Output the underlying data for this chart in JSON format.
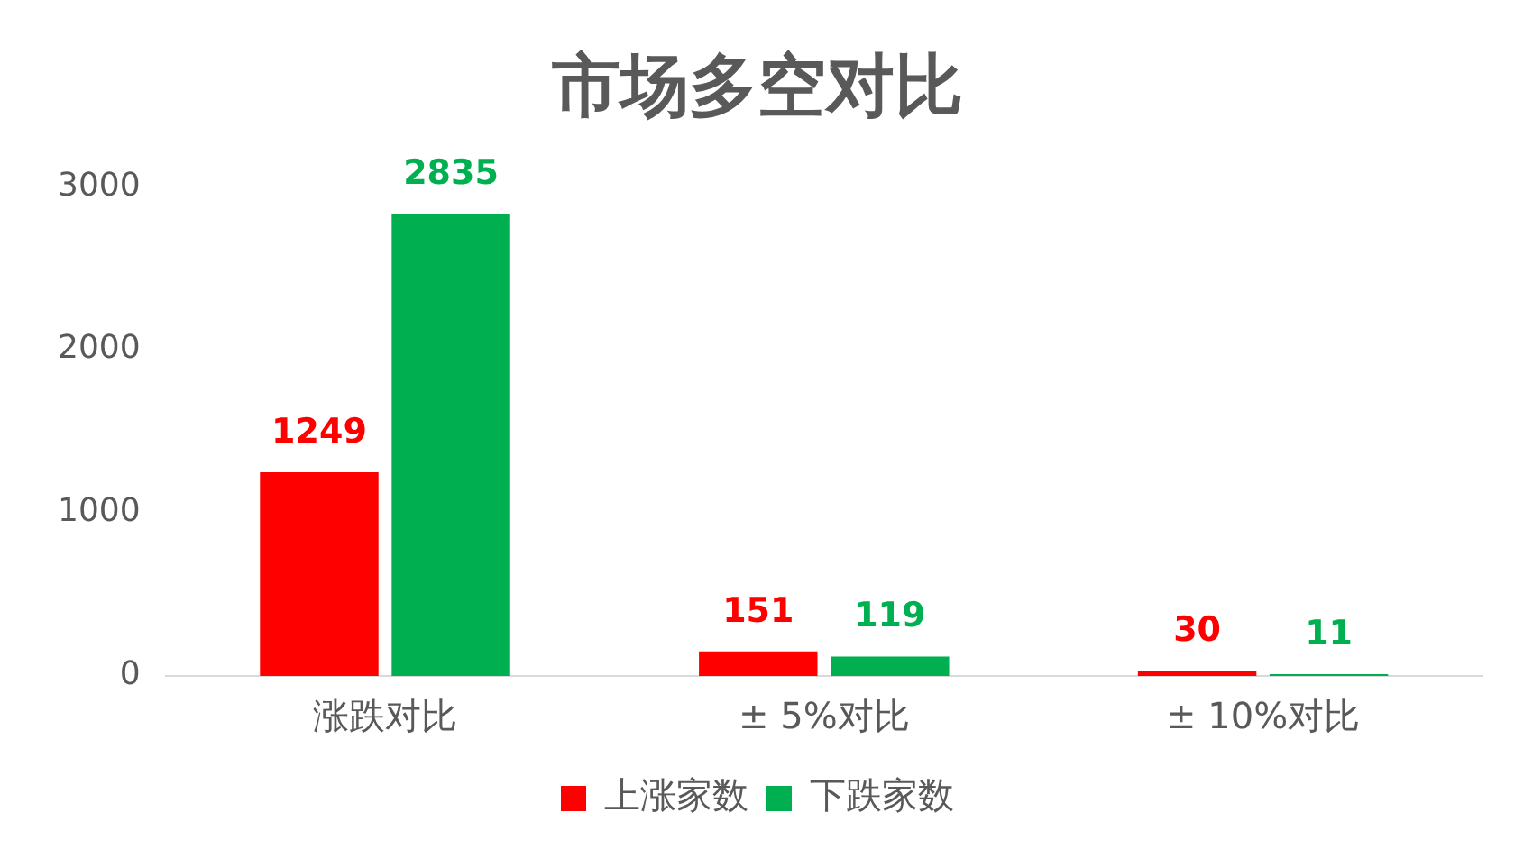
{
  "chart_data": {
    "type": "bar",
    "title": "市场多空对比",
    "categories": [
      "涨跌对比",
      "± 5%对比",
      "± 10%对比"
    ],
    "series": [
      {
        "name": "上涨家数",
        "color": "#ff0000",
        "values": [
          1249,
          151,
          30
        ]
      },
      {
        "name": "下跌家数",
        "color": "#00b050",
        "values": [
          2835,
          119,
          11
        ]
      }
    ],
    "ylim": [
      0,
      3000
    ],
    "yticks": [
      0,
      1000,
      2000,
      3000
    ],
    "legend": "bottom",
    "data_labels": true
  }
}
